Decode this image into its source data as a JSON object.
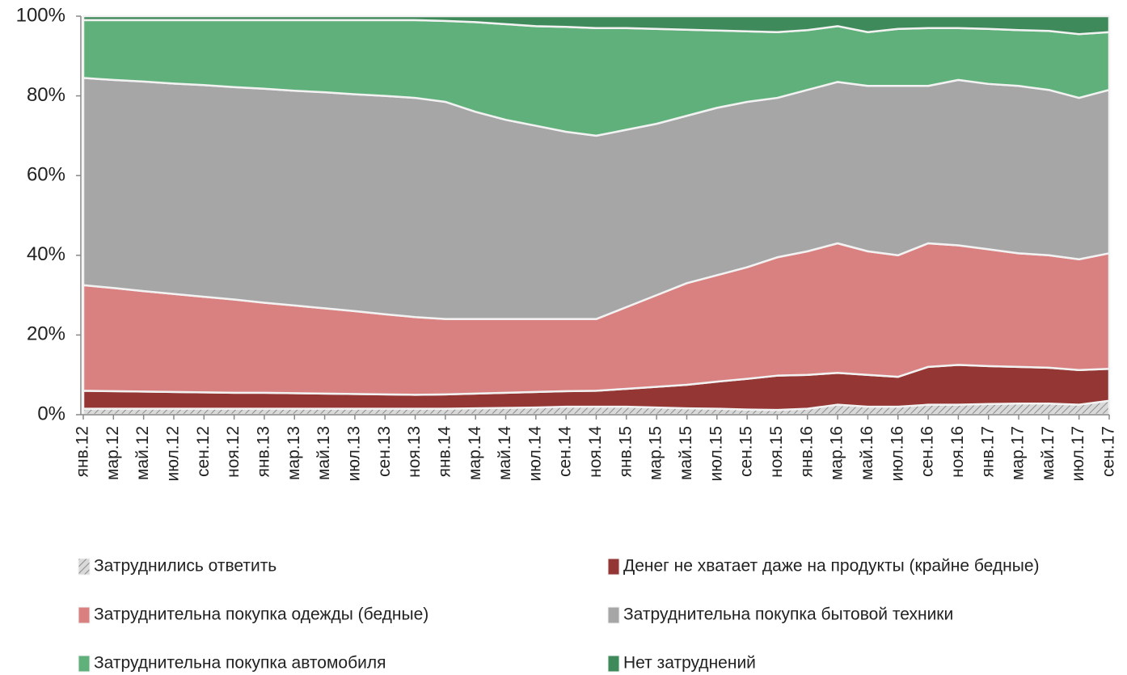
{
  "chart_data": {
    "type": "stacked_area",
    "categories": [
      "янв.12",
      "мар.12",
      "май.12",
      "июл.12",
      "сен.12",
      "ноя.12",
      "янв.13",
      "мар.13",
      "май.13",
      "июл.13",
      "сен.13",
      "ноя.13",
      "янв.14",
      "мар.14",
      "май.14",
      "июл.14",
      "сен.14",
      "ноя.14",
      "янв.15",
      "мар.15",
      "май.15",
      "июл.15",
      "сен.15",
      "ноя.15",
      "янв.16",
      "мар.16",
      "май.16",
      "июл.16",
      "сен.16",
      "ноя.16",
      "янв.17",
      "мар.17",
      "май.17",
      "июл.17",
      "сен.17"
    ],
    "series": [
      {
        "name": "Затруднились ответить",
        "color": "#cfcfcf",
        "hatch": true,
        "values": [
          1.5,
          1.5,
          1.5,
          1.5,
          1.5,
          1.5,
          1.5,
          1.5,
          1.5,
          1.5,
          1.5,
          1.5,
          1.5,
          1.6,
          1.7,
          1.8,
          2,
          2,
          2,
          1.8,
          1.6,
          1.5,
          1.3,
          1.2,
          1.5,
          2.5,
          2,
          2,
          2.5,
          2.5,
          2.7,
          2.8,
          2.8,
          2.5,
          3.5
        ]
      },
      {
        "name": "Денег не хватает даже на продукты (крайне бедные)",
        "color": "#943634",
        "values": [
          4.5,
          4.4,
          4.3,
          4.2,
          4.1,
          4,
          4,
          3.9,
          3.8,
          3.7,
          3.6,
          3.5,
          3.6,
          3.7,
          3.8,
          3.9,
          3.9,
          4,
          4.5,
          5.2,
          5.9,
          6.8,
          7.7,
          8.6,
          8.5,
          8,
          8,
          7.5,
          9.5,
          10,
          9.5,
          9.2,
          9,
          8.7,
          8
        ]
      },
      {
        "name": "Затруднительна покупка одежды (бедные)",
        "color": "#d98080",
        "values": [
          26.5,
          25.9,
          25.2,
          24.6,
          24,
          23.4,
          22.6,
          22,
          21.4,
          20.8,
          20.1,
          19.5,
          18.9,
          18.7,
          18.5,
          18.3,
          18.1,
          18,
          20.5,
          23,
          25.5,
          26.7,
          28,
          29.7,
          31,
          32.5,
          31,
          30.5,
          31,
          30,
          29.3,
          28.5,
          28.2,
          27.8,
          29
        ]
      },
      {
        "name": "Затруднительна покупка бытовой техники",
        "color": "#a6a6a6",
        "values": [
          52,
          52.2,
          52.6,
          52.8,
          53.1,
          53.3,
          53.7,
          53.9,
          54.2,
          54.4,
          54.8,
          55,
          54.5,
          52,
          50,
          48.5,
          47,
          46,
          44.5,
          43,
          42,
          42,
          41.5,
          40,
          40.5,
          40.5,
          41.5,
          42.5,
          39.5,
          41.5,
          41.5,
          42,
          41.5,
          40.5,
          41
        ]
      },
      {
        "name": "Затруднительна покупка автомобиля",
        "color": "#5fb07a",
        "values": [
          14.5,
          15,
          15.4,
          15.9,
          16.3,
          16.8,
          17.2,
          17.7,
          18.1,
          18.6,
          19,
          19.5,
          20.3,
          22.5,
          24,
          25,
          26.3,
          27,
          25.5,
          23.8,
          21.6,
          19.4,
          17.7,
          16.5,
          15,
          14,
          13.5,
          14.3,
          14.5,
          13,
          13.8,
          14,
          14.8,
          16,
          14.5
        ]
      },
      {
        "name": "Нет затруднений",
        "color": "#3f8a5a",
        "values": [
          1,
          1,
          1,
          1,
          1,
          1,
          1,
          1,
          1,
          1,
          1,
          1,
          1.2,
          1.5,
          2,
          2.5,
          2.7,
          3,
          3,
          3.2,
          3.4,
          3.6,
          3.8,
          4,
          3.5,
          2.5,
          4,
          3.2,
          3,
          3,
          3.2,
          3.5,
          3.7,
          4.5,
          4
        ]
      }
    ],
    "ylim": [
      0,
      100
    ],
    "yticks": [
      {
        "value": 0,
        "label": "0%"
      },
      {
        "value": 20,
        "label": "20%"
      },
      {
        "value": 40,
        "label": "40%"
      },
      {
        "value": 60,
        "label": "60%"
      },
      {
        "value": 80,
        "label": "80%"
      },
      {
        "value": 100,
        "label": "100%"
      }
    ],
    "legend": "bottom"
  }
}
